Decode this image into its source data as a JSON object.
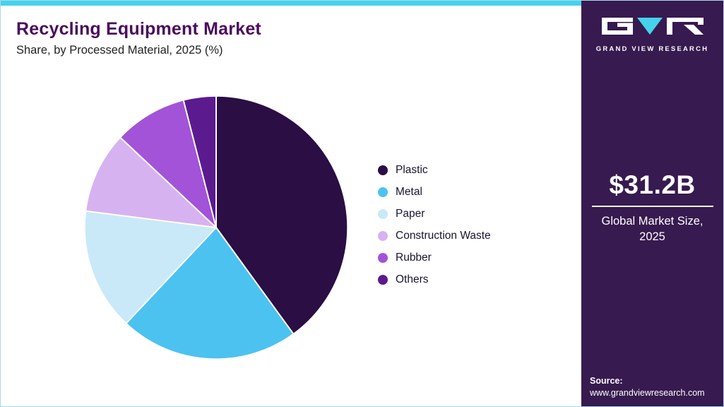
{
  "meta": {
    "topbar_color": "#46d2ec",
    "sidebar_color": "#371a4f",
    "canvas_border_color": "#a9d9ec"
  },
  "header": {
    "title": "Recycling Equipment Market",
    "subtitle": "Share, by Processed Material, 2025 (%)"
  },
  "sidebar": {
    "logo_text": "GRAND VIEW RESEARCH",
    "market_size": "$31.2B",
    "market_size_label": "Global Market Size, 2025",
    "source_label": "Source:",
    "source_url": "www.grandviewresearch.com"
  },
  "chart_data": {
    "type": "pie",
    "title": "Recycling Equipment Market Share, by Processed Material, 2025 (%)",
    "categories": [
      "Plastic",
      "Metal",
      "Paper",
      "Construction Waste",
      "Rubber",
      "Others"
    ],
    "values": [
      40,
      22,
      15,
      10,
      9,
      4
    ],
    "colors": [
      "#2a0e44",
      "#4cc2f1",
      "#c9e9f8",
      "#d7b2f0",
      "#a253d8",
      "#5b1b8f"
    ],
    "start_angle_deg": -90,
    "direction": "clockwise",
    "legend_position": "right",
    "data_labels": false
  }
}
